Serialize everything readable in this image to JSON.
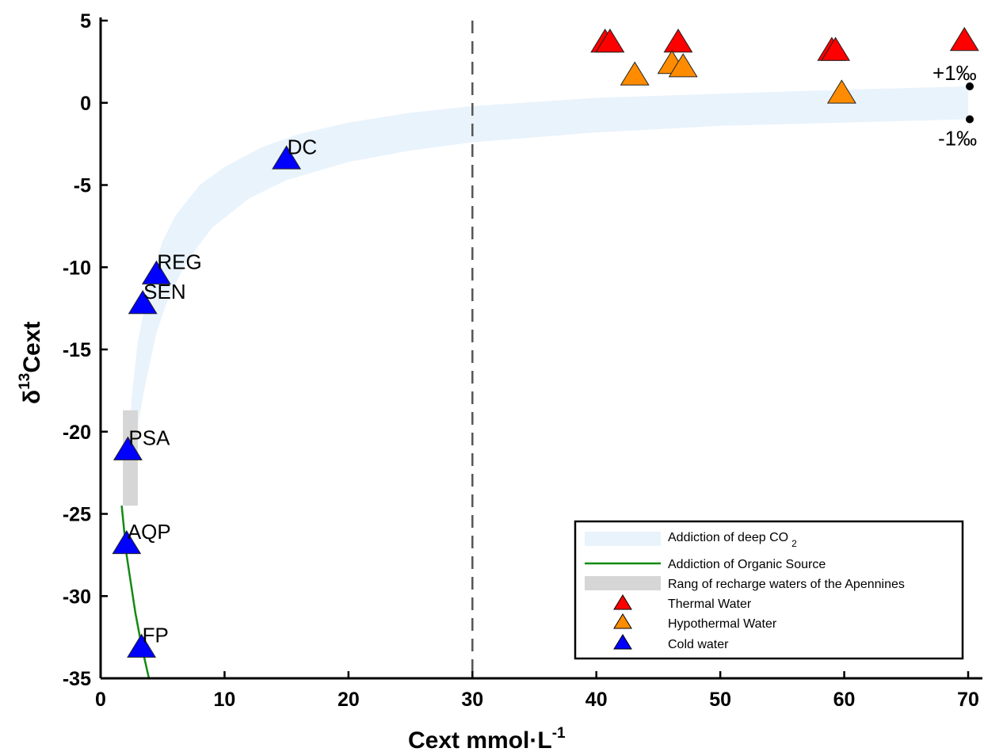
{
  "chart_data": {
    "type": "scatter",
    "xlabel": "Cext mmol·L",
    "xlabel_sup": "-1",
    "ylabel": "δ",
    "ylabel_sup": "13",
    "ylabel_rest": "Cext",
    "xlim": [
      0,
      70
    ],
    "ylim": [
      -35,
      5
    ],
    "x_ticks": [
      0,
      10,
      20,
      30,
      40,
      50,
      60,
      70
    ],
    "y_ticks": [
      5,
      0,
      -5,
      -10,
      -15,
      -20,
      -25,
      -30,
      -35
    ],
    "vertical_reference_line": {
      "x": 30,
      "style": "dashed"
    },
    "annotations": {
      "upper": "+1‰",
      "lower": "-1‰"
    },
    "series": [
      {
        "name": "Thermal Water",
        "color": "#ff0000",
        "marker": "triangle",
        "points": [
          {
            "x": 40.7,
            "y": 3.7
          },
          {
            "x": 41.1,
            "y": 3.7
          },
          {
            "x": 46.6,
            "y": 3.7
          },
          {
            "x": 59.0,
            "y": 3.2
          },
          {
            "x": 59.3,
            "y": 3.2
          },
          {
            "x": 69.7,
            "y": 3.8
          }
        ]
      },
      {
        "name": "Hypothermal Water",
        "color": "#ff8c00",
        "marker": "triangle",
        "points": [
          {
            "x": 43.1,
            "y": 1.7
          },
          {
            "x": 46.1,
            "y": 2.4
          },
          {
            "x": 47.0,
            "y": 2.2
          },
          {
            "x": 59.8,
            "y": 0.6
          }
        ]
      },
      {
        "name": "Cold water",
        "color": "#0000ff",
        "marker": "triangle",
        "points": [
          {
            "x": 15.0,
            "y": -3.4,
            "label": "DC"
          },
          {
            "x": 4.5,
            "y": -10.4,
            "label": "REG"
          },
          {
            "x": 3.4,
            "y": -12.2,
            "label": "SEN"
          },
          {
            "x": 2.2,
            "y": -21.1,
            "label": "PSA"
          },
          {
            "x": 2.1,
            "y": -26.8,
            "label": "AQP"
          },
          {
            "x": 3.3,
            "y": -33.1,
            "label": "FP"
          }
        ]
      }
    ],
    "curves": [
      {
        "name": "Addiction of deep CO",
        "name_sub": "2",
        "type": "band",
        "color": "#e9f3fc",
        "upper": [
          [
            2.2,
            -21.5
          ],
          [
            2.5,
            -18
          ],
          [
            3,
            -14.5
          ],
          [
            4,
            -10.8
          ],
          [
            5,
            -8.4
          ],
          [
            6,
            -6.9
          ],
          [
            8,
            -5.0
          ],
          [
            10,
            -3.9
          ],
          [
            13,
            -2.7
          ],
          [
            16,
            -1.9
          ],
          [
            20,
            -1.2
          ],
          [
            25,
            -0.6
          ],
          [
            30,
            -0.2
          ],
          [
            40,
            0.3
          ],
          [
            50,
            0.55
          ],
          [
            60,
            0.8
          ],
          [
            70,
            1.0
          ]
        ],
        "lower": [
          [
            2.2,
            -21.5
          ],
          [
            2.8,
            -20.5
          ],
          [
            3.5,
            -17.5
          ],
          [
            4.5,
            -14.0
          ],
          [
            5.5,
            -11.8
          ],
          [
            7,
            -9.6
          ],
          [
            9,
            -7.6
          ],
          [
            12,
            -5.8
          ],
          [
            15,
            -4.7
          ],
          [
            20,
            -3.6
          ],
          [
            25,
            -2.9
          ],
          [
            30,
            -2.4
          ],
          [
            40,
            -1.8
          ],
          [
            50,
            -1.4
          ],
          [
            60,
            -1.2
          ],
          [
            70,
            -1.0
          ]
        ]
      },
      {
        "name": "Addiction of Organic Source",
        "type": "line",
        "color": "#138a13",
        "points": [
          [
            1.7,
            -24.5
          ],
          [
            1.9,
            -26
          ],
          [
            2.1,
            -27.5
          ],
          [
            2.4,
            -29
          ],
          [
            2.8,
            -31
          ],
          [
            3.3,
            -33
          ],
          [
            3.9,
            -35
          ]
        ]
      },
      {
        "name": "Rang of recharge waters of the Apennines",
        "type": "range",
        "color": "#d6d6d6",
        "x_range": [
          1.8,
          3.0
        ],
        "y_range": [
          -24.5,
          -18.7
        ]
      }
    ]
  }
}
